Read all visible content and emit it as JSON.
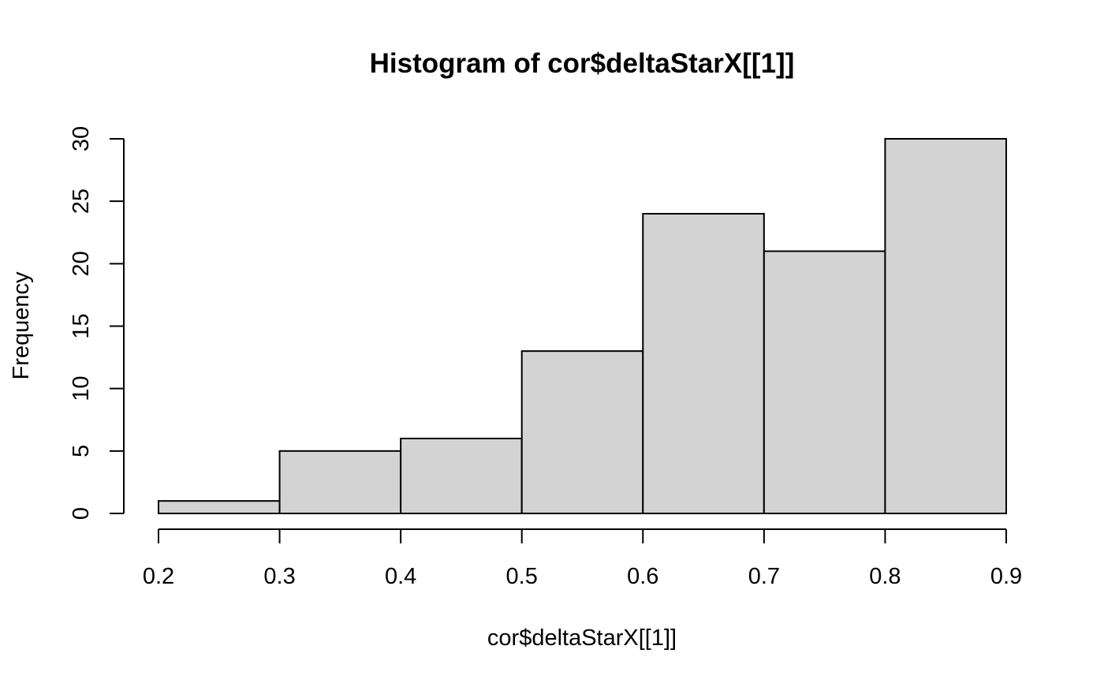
{
  "chart_data": {
    "type": "bar",
    "title": "Histogram of cor$deltaStarX[[1]]",
    "xlabel": "cor$deltaStarX[[1]]",
    "ylabel": "Frequency",
    "bins": [
      {
        "start": 0.2,
        "end": 0.3,
        "count": 1
      },
      {
        "start": 0.3,
        "end": 0.4,
        "count": 5
      },
      {
        "start": 0.4,
        "end": 0.5,
        "count": 6
      },
      {
        "start": 0.5,
        "end": 0.6,
        "count": 13
      },
      {
        "start": 0.6,
        "end": 0.7,
        "count": 24
      },
      {
        "start": 0.7,
        "end": 0.8,
        "count": 21
      },
      {
        "start": 0.8,
        "end": 0.9,
        "count": 30
      }
    ],
    "xlim": [
      0.2,
      0.9
    ],
    "ylim": [
      0,
      30
    ],
    "x_ticks": [
      "0.2",
      "0.3",
      "0.4",
      "0.5",
      "0.6",
      "0.7",
      "0.8",
      "0.9"
    ],
    "y_ticks": [
      "0",
      "5",
      "10",
      "15",
      "20",
      "25",
      "30"
    ],
    "grid": false,
    "bar_fill": "#d3d3d3",
    "bar_stroke": "#000000"
  }
}
